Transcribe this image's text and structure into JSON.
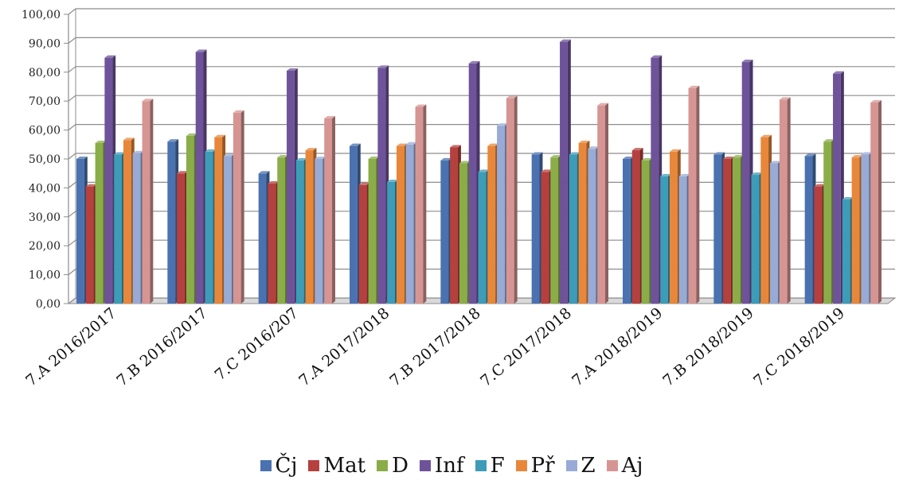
{
  "chart_data": {
    "type": "bar",
    "categories": [
      "7.A 2016/2017",
      "7.B 2016/2017",
      "7.C 2016/207",
      "7.A 2017/2018",
      "7.B 2017/2018",
      "7.C 2017/2018",
      "7.A 2018/2019",
      "7.B 2018/2019",
      "7.C 2018/2019"
    ],
    "ylim": [
      0,
      100
    ],
    "yticks": [
      "0,00",
      "10,00",
      "20,00",
      "30,00",
      "40,00",
      "50,00",
      "60,00",
      "70,00",
      "80,00",
      "90,00",
      "100,00"
    ],
    "grid": true,
    "legend_position": "bottom",
    "series": [
      {
        "name": "Čj",
        "color": "#4a72b0",
        "values": [
          50.0,
          56.0,
          45.0,
          54.5,
          49.5,
          51.5,
          50.0,
          51.5,
          51.0
        ]
      },
      {
        "name": "Mat",
        "color": "#b5403e",
        "values": [
          40.5,
          45.0,
          41.5,
          41.0,
          54.0,
          45.5,
          53.0,
          50.0,
          40.5
        ]
      },
      {
        "name": "D",
        "color": "#8aad48",
        "values": [
          55.5,
          58.0,
          50.5,
          50.0,
          48.5,
          50.5,
          49.5,
          50.5,
          56.0
        ]
      },
      {
        "name": "Inf",
        "color": "#6e539a",
        "values": [
          85.0,
          87.0,
          80.5,
          81.5,
          83.0,
          90.5,
          85.0,
          83.5,
          79.5
        ]
      },
      {
        "name": "F",
        "color": "#3d9cb8",
        "values": [
          51.5,
          52.5,
          49.5,
          42.0,
          45.5,
          51.5,
          44.0,
          44.5,
          36.0
        ]
      },
      {
        "name": "Př",
        "color": "#e8873a",
        "values": [
          56.5,
          57.5,
          53.0,
          54.5,
          54.5,
          55.5,
          52.5,
          57.5,
          50.5
        ]
      },
      {
        "name": "Z",
        "color": "#98abd6",
        "values": [
          52.0,
          51.0,
          50.0,
          55.0,
          61.5,
          53.5,
          44.0,
          48.5,
          51.5
        ]
      },
      {
        "name": "Aj",
        "color": "#d69593",
        "values": [
          70.0,
          66.0,
          64.0,
          68.0,
          71.0,
          68.5,
          74.5,
          70.5,
          69.5
        ]
      }
    ]
  }
}
